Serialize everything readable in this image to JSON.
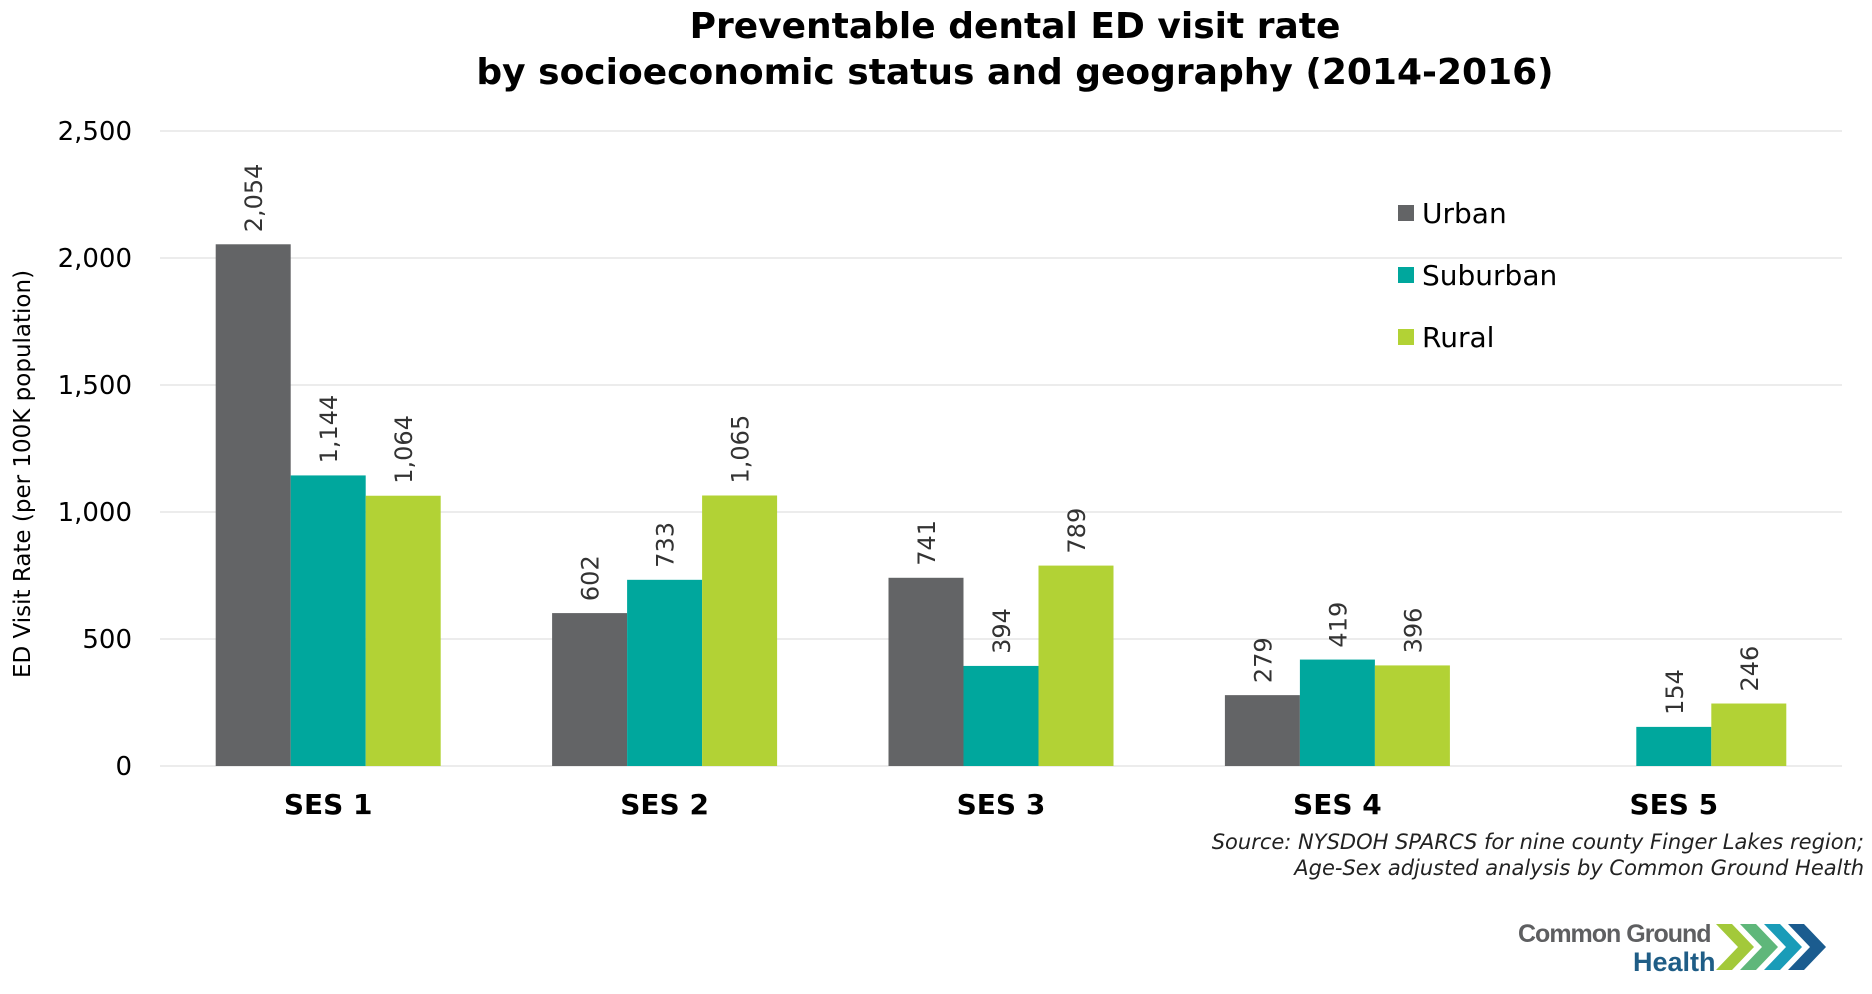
{
  "chart_data": {
    "type": "bar",
    "title": [
      "Preventable dental ED visit rate",
      "by socioeconomic status and geography (2014-2016)"
    ],
    "xlabel": "",
    "ylabel": "ED Visit Rate (per 100K population)",
    "ylim": [
      0,
      2500
    ],
    "yticks": [
      0,
      500,
      1000,
      1500,
      2000,
      2500
    ],
    "ytick_labels": [
      "0",
      "500",
      "1,000",
      "1,500",
      "2,000",
      "2,500"
    ],
    "grid": true,
    "legend_position": "top-right",
    "categories": [
      "SES 1",
      "SES 2",
      "SES 3",
      "SES 4",
      "SES 5"
    ],
    "series": [
      {
        "name": "Urban",
        "color": "#636466",
        "values": [
          2054,
          602,
          741,
          279,
          null
        ],
        "labels": [
          "2,054",
          "602",
          "741",
          "279",
          ""
        ]
      },
      {
        "name": "Suburban",
        "color": "#00a79d",
        "values": [
          1144,
          733,
          394,
          419,
          154
        ],
        "labels": [
          "1,144",
          "733",
          "394",
          "419",
          "154"
        ]
      },
      {
        "name": "Rural",
        "color": "#b2d235",
        "values": [
          1064,
          1065,
          789,
          396,
          246
        ],
        "labels": [
          "1,064",
          "1,065",
          "789",
          "396",
          "246"
        ]
      }
    ]
  },
  "source": [
    "Source: NYSDOH SPARCS for nine county Finger Lakes region;",
    "Age-Sex adjusted analysis by Common Ground Health"
  ],
  "logo": {
    "line1": "Common Ground",
    "line2": "Health"
  }
}
